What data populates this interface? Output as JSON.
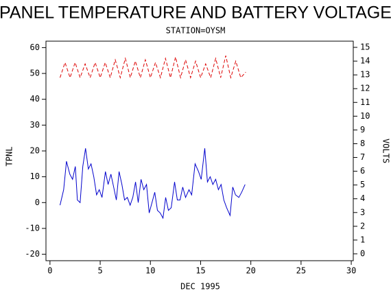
{
  "chart_data": {
    "type": "line",
    "title": "PANEL TEMPERATURE AND BATTERY VOLTAGE",
    "subtitle": "STATION=OYSM",
    "x_label": "DEC 1995",
    "y_label": "TPNL",
    "y2_label": "VOLTS",
    "xlim": [
      -0.4,
      30.2
    ],
    "xticks": [
      0,
      5,
      10,
      15,
      20,
      25,
      30
    ],
    "ylim": [
      -22.5,
      62.5
    ],
    "yticks": [
      -20,
      -10,
      0,
      10,
      20,
      30,
      40,
      50,
      60
    ],
    "y2lim": [
      -0.5,
      15.45
    ],
    "y2ticks": [
      0,
      1,
      2,
      3,
      4,
      5,
      6,
      7,
      8,
      9,
      10,
      11,
      12,
      13,
      14,
      15
    ],
    "series": [
      {
        "name": "TPNL",
        "color": "#0000cc",
        "axis": "y",
        "x": [
          1.0,
          1.36,
          1.64,
          1.98,
          2.25,
          2.52,
          2.73,
          3.0,
          3.27,
          3.54,
          3.82,
          4.09,
          4.36,
          4.64,
          4.91,
          5.18,
          5.52,
          5.79,
          6.07,
          6.34,
          6.61,
          6.88,
          7.16,
          7.43,
          7.7,
          7.98,
          8.25,
          8.52,
          8.79,
          9.07,
          9.34,
          9.61,
          9.88,
          10.16,
          10.43,
          10.7,
          10.97,
          11.25,
          11.52,
          11.79,
          12.07,
          12.41,
          12.68,
          12.95,
          13.22,
          13.5,
          13.84,
          14.11,
          14.45,
          14.79,
          15.06,
          15.41,
          15.68,
          15.95,
          16.22,
          16.5,
          16.77,
          17.04,
          17.31,
          17.59,
          17.93,
          18.2,
          18.47,
          18.81,
          19.09,
          19.43
        ],
        "values": [
          -1,
          5,
          16,
          11,
          9,
          14,
          1,
          0,
          14,
          21,
          13,
          15,
          10,
          3,
          5,
          2,
          12,
          7,
          11,
          6,
          1,
          12,
          7,
          1,
          2,
          -1,
          2,
          8,
          0,
          9,
          5,
          7,
          -4,
          0,
          4,
          -3,
          -4,
          -6,
          2,
          -3,
          -2,
          8,
          1,
          1,
          6,
          2,
          5,
          3,
          15,
          12,
          9,
          21,
          8,
          10,
          7,
          9,
          5,
          7,
          1,
          -2,
          -5,
          6,
          3,
          2,
          4,
          7
        ]
      },
      {
        "name": "VOLTS",
        "color": "#dd0000",
        "axis": "y2",
        "dashed": true,
        "x": [
          1.0,
          1.5,
          2.0,
          2.5,
          3.0,
          3.5,
          4.0,
          4.5,
          5.0,
          5.5,
          6.0,
          6.5,
          7.0,
          7.5,
          8.0,
          8.5,
          9.0,
          9.5,
          10.0,
          10.5,
          11.0,
          11.5,
          12.0,
          12.5,
          13.0,
          13.5,
          14.0,
          14.5,
          15.0,
          15.5,
          16.0,
          16.5,
          17.0,
          17.5,
          18.0,
          18.5,
          19.0,
          19.5
        ],
        "values": [
          12.8,
          13.9,
          12.8,
          13.9,
          12.8,
          13.8,
          12.8,
          13.9,
          12.8,
          13.9,
          12.8,
          14.1,
          12.8,
          14.2,
          12.8,
          14.0,
          12.8,
          14.1,
          12.8,
          13.9,
          12.8,
          14.2,
          12.8,
          14.3,
          12.8,
          14.1,
          12.8,
          14.0,
          12.8,
          13.8,
          12.8,
          14.2,
          12.8,
          14.4,
          12.8,
          14.0,
          12.8,
          13.2
        ]
      }
    ]
  }
}
